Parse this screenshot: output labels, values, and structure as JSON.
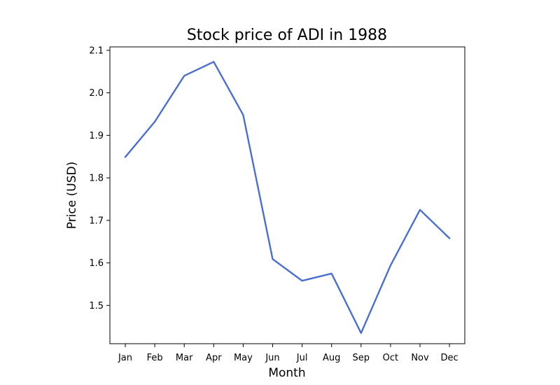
{
  "chart_data": {
    "type": "line",
    "title": "Stock price of ADI in 1988",
    "xlabel": "Month",
    "ylabel": "Price (USD)",
    "categories": [
      "Jan",
      "Feb",
      "Mar",
      "Apr",
      "May",
      "Jun",
      "Jul",
      "Aug",
      "Sep",
      "Oct",
      "Nov",
      "Dec"
    ],
    "series": [
      {
        "color": "#4b6fcf",
        "values": [
          1.849,
          1.932,
          2.04,
          2.073,
          1.948,
          1.609,
          1.558,
          1.575,
          1.435,
          1.594,
          1.725,
          1.658
        ]
      }
    ],
    "ylim": [
      1.41,
      2.108
    ],
    "yticks": [
      1.5,
      1.6,
      1.7,
      1.8,
      1.9,
      2.0,
      2.1
    ],
    "ytick_labels": [
      "1.5",
      "1.6",
      "1.7",
      "1.8",
      "1.9",
      "2.0",
      "2.1"
    ],
    "grid": false,
    "legend": "none"
  }
}
